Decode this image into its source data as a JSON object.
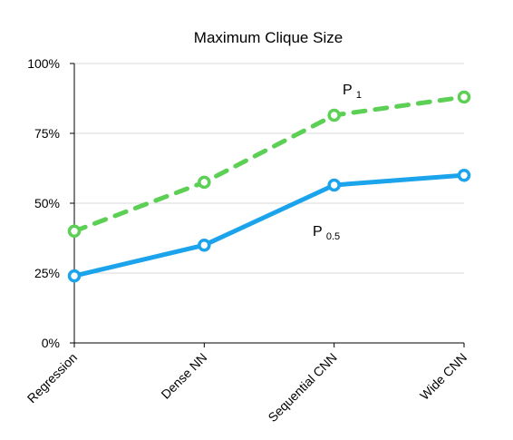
{
  "chart_data": {
    "type": "line",
    "title": "Maximum Clique Size",
    "xlabel": "",
    "ylabel": "",
    "categories": [
      "Regression",
      "Dense NN",
      "Sequential CNN",
      "Wide CNN"
    ],
    "ylim": [
      0,
      100
    ],
    "yticks": [
      "0%",
      "25%",
      "50%",
      "75%",
      "100%"
    ],
    "ytick_values": [
      0,
      25,
      50,
      75,
      100
    ],
    "grid": true,
    "series": [
      {
        "label_main": "P",
        "label_sub": "1",
        "values": [
          40,
          57.5,
          81.5,
          88
        ],
        "color": "#5bd054",
        "line_style": "dashed"
      },
      {
        "label_main": "P",
        "label_sub": "0.5",
        "values": [
          24,
          35,
          56.5,
          60
        ],
        "color": "#1ba3ec",
        "line_style": "solid"
      }
    ]
  }
}
